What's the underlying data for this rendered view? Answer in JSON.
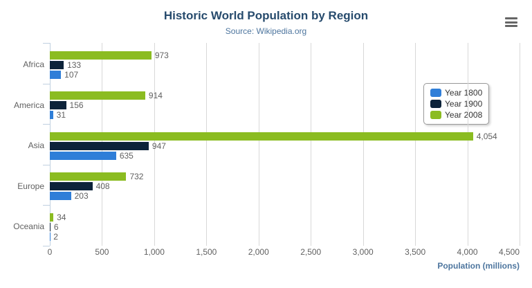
{
  "chart": {
    "title": "Historic World Population by Region",
    "subtitle": "Source: Wikipedia.org",
    "export_menu": {
      "icon_name": "hamburger-menu-icon"
    }
  },
  "chart_data": {
    "type": "bar",
    "orientation": "horizontal",
    "title": "Historic World Population by Region",
    "subtitle": "Source: Wikipedia.org",
    "categories": [
      "Africa",
      "America",
      "Asia",
      "Europe",
      "Oceania"
    ],
    "series": [
      {
        "name": "Year 1800",
        "color": "#2f7ed8",
        "values": [
          107,
          31,
          635,
          203,
          2
        ],
        "labels": [
          "107",
          "31",
          "635",
          "203",
          "2"
        ]
      },
      {
        "name": "Year 1900",
        "color": "#0d233a",
        "values": [
          133,
          156,
          947,
          408,
          6
        ],
        "labels": [
          "133",
          "156",
          "947",
          "408",
          "6"
        ]
      },
      {
        "name": "Year 2008",
        "color": "#8bbc21",
        "values": [
          973,
          914,
          4054,
          732,
          34
        ],
        "labels": [
          "973",
          "914",
          "4,054",
          "732",
          "34"
        ]
      }
    ],
    "bar_display_order_top_to_bottom": [
      "Year 2008",
      "Year 1900",
      "Year 1800"
    ],
    "xlabel": "Population (millions)",
    "ylabel": "",
    "xlim": [
      0,
      4500
    ],
    "x_ticks": [
      0,
      500,
      1000,
      1500,
      2000,
      2500,
      3000,
      3500,
      4000,
      4500
    ],
    "x_tick_labels": [
      "0",
      "500",
      "1,000",
      "1,500",
      "2,000",
      "2,500",
      "3,000",
      "3,500",
      "4,000",
      "4,500"
    ],
    "grid": true,
    "legend": {
      "position": "right",
      "entries": [
        "Year 1800",
        "Year 1900",
        "Year 2008"
      ]
    },
    "colors": {
      "title": "#274b6d",
      "subtitle": "#4d759e",
      "axis_labels": "#606060",
      "data_labels": "#606060",
      "grid_line": "#d8d8d8",
      "axis_line": "#c0d0e0",
      "legend_border": "#999999",
      "menu_icon": "#666666"
    }
  }
}
